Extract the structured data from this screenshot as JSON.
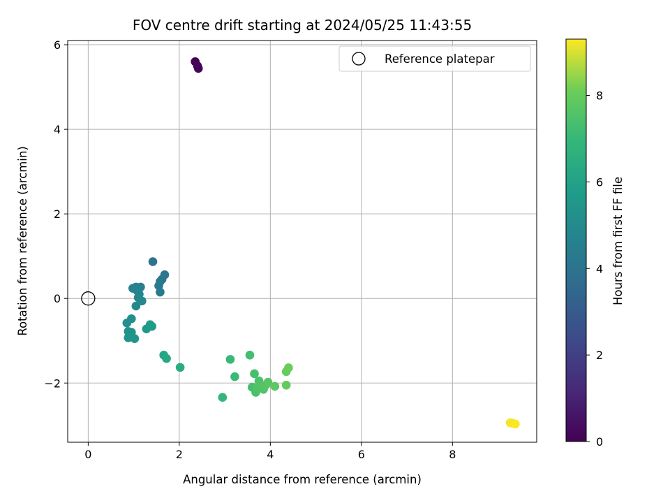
{
  "chart_data": {
    "type": "scatter",
    "title": "FOV centre drift starting at 2024/05/25 11:43:55",
    "xlabel": "Angular distance from reference (arcmin)",
    "ylabel": "Rotation from reference (arcmin)",
    "xlim": [
      -0.45,
      9.85
    ],
    "ylim": [
      -3.4,
      6.1
    ],
    "xticks": [
      0,
      2,
      4,
      6,
      8
    ],
    "yticks": [
      -2,
      0,
      2,
      4,
      6
    ],
    "grid": true,
    "legend": {
      "placement": "top-right",
      "entries": [
        {
          "label": "Reference platepar",
          "marker": "open-circle",
          "x": 0,
          "y": 0
        }
      ]
    },
    "colorbar": {
      "label": "Hours from first FF file",
      "colormap": "viridis",
      "range": [
        0,
        9.3
      ],
      "ticks": [
        0,
        2,
        4,
        6,
        8
      ]
    },
    "points": [
      {
        "x": 2.35,
        "y": 5.6,
        "hours": 0.0
      },
      {
        "x": 2.4,
        "y": 5.5,
        "hours": 0.05
      },
      {
        "x": 2.42,
        "y": 5.44,
        "hours": 0.1
      },
      {
        "x": 1.42,
        "y": 0.87,
        "hours": 3.6
      },
      {
        "x": 1.68,
        "y": 0.56,
        "hours": 3.65
      },
      {
        "x": 1.62,
        "y": 0.45,
        "hours": 3.7
      },
      {
        "x": 1.58,
        "y": 0.4,
        "hours": 3.75
      },
      {
        "x": 1.55,
        "y": 0.3,
        "hours": 3.8
      },
      {
        "x": 1.58,
        "y": 0.15,
        "hours": 3.85
      },
      {
        "x": 1.15,
        "y": 0.27,
        "hours": 4.05
      },
      {
        "x": 1.05,
        "y": 0.27,
        "hours": 4.1
      },
      {
        "x": 0.98,
        "y": 0.24,
        "hours": 4.15
      },
      {
        "x": 1.08,
        "y": 0.18,
        "hours": 4.2
      },
      {
        "x": 1.12,
        "y": 0.1,
        "hours": 4.25
      },
      {
        "x": 1.1,
        "y": 0.02,
        "hours": 4.3
      },
      {
        "x": 1.18,
        "y": -0.06,
        "hours": 4.35
      },
      {
        "x": 1.05,
        "y": -0.18,
        "hours": 4.4
      },
      {
        "x": 0.95,
        "y": -0.48,
        "hours": 4.6
      },
      {
        "x": 0.85,
        "y": -0.58,
        "hours": 4.65
      },
      {
        "x": 0.88,
        "y": -0.78,
        "hours": 4.7
      },
      {
        "x": 0.95,
        "y": -0.8,
        "hours": 4.75
      },
      {
        "x": 0.88,
        "y": -0.93,
        "hours": 4.8
      },
      {
        "x": 1.02,
        "y": -0.95,
        "hours": 4.85
      },
      {
        "x": 1.28,
        "y": -0.72,
        "hours": 5.0
      },
      {
        "x": 1.36,
        "y": -0.62,
        "hours": 5.05
      },
      {
        "x": 1.4,
        "y": -0.66,
        "hours": 5.1
      },
      {
        "x": 1.66,
        "y": -1.34,
        "hours": 5.5
      },
      {
        "x": 1.72,
        "y": -1.42,
        "hours": 5.55
      },
      {
        "x": 2.02,
        "y": -1.63,
        "hours": 5.75
      },
      {
        "x": 2.95,
        "y": -2.34,
        "hours": 6.15
      },
      {
        "x": 3.12,
        "y": -1.44,
        "hours": 6.25
      },
      {
        "x": 3.22,
        "y": -1.85,
        "hours": 6.3
      },
      {
        "x": 3.55,
        "y": -1.34,
        "hours": 6.45
      },
      {
        "x": 3.65,
        "y": -1.78,
        "hours": 6.5
      },
      {
        "x": 3.6,
        "y": -2.1,
        "hours": 6.55
      },
      {
        "x": 3.68,
        "y": -2.22,
        "hours": 6.6
      },
      {
        "x": 3.75,
        "y": -1.95,
        "hours": 6.65
      },
      {
        "x": 3.8,
        "y": -2.05,
        "hours": 6.7
      },
      {
        "x": 3.72,
        "y": -2.1,
        "hours": 6.72
      },
      {
        "x": 3.85,
        "y": -2.15,
        "hours": 6.75
      },
      {
        "x": 3.9,
        "y": -2.05,
        "hours": 6.8
      },
      {
        "x": 3.95,
        "y": -1.98,
        "hours": 6.85
      },
      {
        "x": 4.1,
        "y": -2.08,
        "hours": 6.95
      },
      {
        "x": 4.35,
        "y": -2.05,
        "hours": 7.05
      },
      {
        "x": 4.35,
        "y": -1.73,
        "hours": 7.1
      },
      {
        "x": 4.4,
        "y": -1.64,
        "hours": 7.15
      },
      {
        "x": 9.27,
        "y": -2.94,
        "hours": 9.15
      },
      {
        "x": 9.32,
        "y": -2.95,
        "hours": 9.2
      },
      {
        "x": 9.38,
        "y": -2.97,
        "hours": 9.25
      }
    ]
  }
}
